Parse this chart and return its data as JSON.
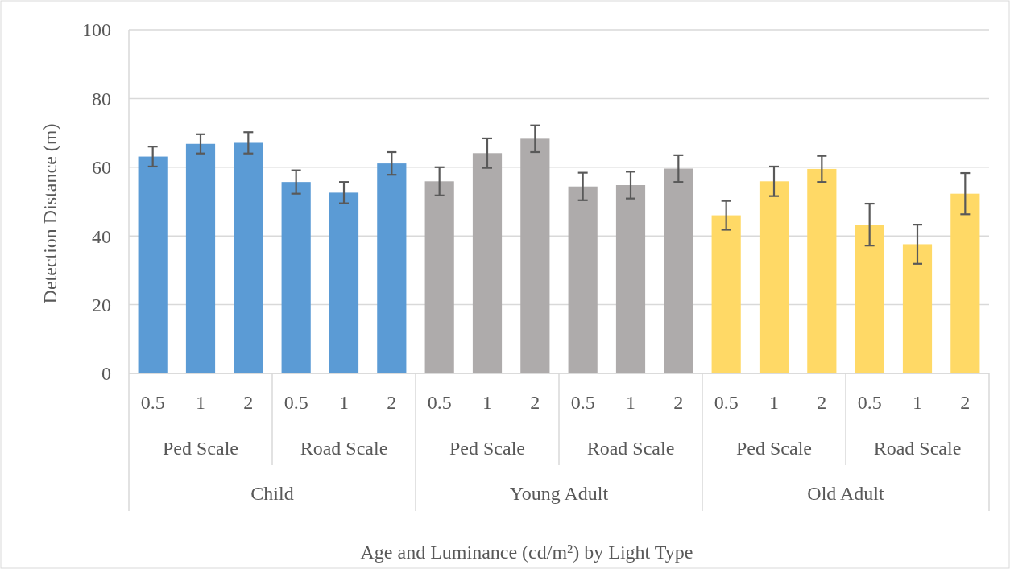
{
  "chart_data": {
    "type": "bar",
    "ylabel": "Detection Distance (m)",
    "categories": [
      "0.5",
      "1",
      "2",
      "0.5",
      "1",
      "2",
      "0.5",
      "1",
      "2",
      "0.5",
      "1",
      "2",
      "0.5",
      "1",
      "2",
      "0.5",
      "1",
      "2"
    ],
    "values": [
      63.1,
      66.8,
      67.1,
      55.7,
      52.6,
      61.1,
      55.9,
      64.1,
      68.3,
      54.4,
      54.8,
      59.6,
      46.0,
      55.9,
      59.5,
      43.3,
      37.6,
      52.3
    ],
    "errors": [
      2.9,
      2.8,
      3.1,
      3.4,
      3.1,
      3.3,
      4.1,
      4.3,
      3.9,
      4.0,
      3.9,
      3.9,
      4.2,
      4.3,
      3.8,
      6.1,
      5.7,
      6.0
    ],
    "colors": [
      "#5b9bd5",
      "#5b9bd5",
      "#5b9bd5",
      "#5b9bd5",
      "#5b9bd5",
      "#5b9bd5",
      "#aeabab",
      "#aeabab",
      "#aeabab",
      "#aeabab",
      "#aeabab",
      "#aeabab",
      "#ffd966",
      "#ffd966",
      "#ffd966",
      "#ffd966",
      "#ffd966",
      "#ffd966"
    ],
    "annotations": [
      "Ped Scale",
      "Road Scale",
      "Ped Scale",
      "Road Scale",
      "Ped Scale",
      "Road Scale",
      "Child",
      "Young Adult",
      "Old Adult",
      "Age and Luminance (cd/m²) by Light Type"
    ],
    "ylim": [
      0,
      100
    ],
    "yticks": [
      0,
      20,
      40,
      60,
      80,
      100
    ],
    "grid": "y"
  }
}
